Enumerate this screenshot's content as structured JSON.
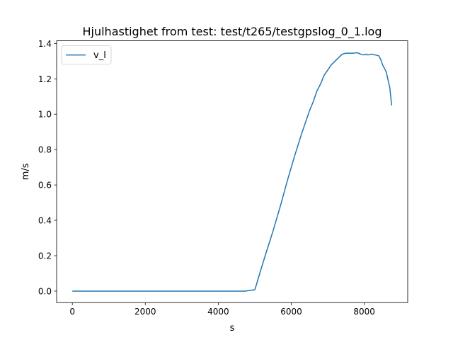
{
  "chart_data": {
    "type": "line",
    "title": "Hjulhastighet from test: test/t265/testgpslog_0_1.log",
    "xlabel": "s",
    "ylabel": "m/s",
    "xlim": [
      -430,
      9190
    ],
    "ylim": [
      -0.065,
      1.415
    ],
    "x_ticks": [
      0,
      2000,
      4000,
      6000,
      8000
    ],
    "x_tick_labels": [
      "0",
      "2000",
      "4000",
      "6000",
      "8000"
    ],
    "y_ticks": [
      0.0,
      0.2,
      0.4,
      0.6,
      0.8,
      1.0,
      1.2,
      1.4
    ],
    "y_tick_labels": [
      "0.0",
      "0.2",
      "0.4",
      "0.6",
      "0.8",
      "1.0",
      "1.2",
      "1.4"
    ],
    "grid": false,
    "legend_position": "upper-left",
    "colors": {
      "series": "#1f77b4",
      "axes": "#000000",
      "background": "#ffffff"
    },
    "series": [
      {
        "name": "v_l",
        "color": "#1f77b4",
        "x": [
          0,
          1000,
          2000,
          3000,
          4000,
          4750,
          4800,
          5000,
          5050,
          5150,
          5300,
          5500,
          5700,
          5900,
          6100,
          6300,
          6500,
          6600,
          6700,
          6800,
          6900,
          7000,
          7100,
          7200,
          7300,
          7400,
          7500,
          7600,
          7700,
          7800,
          7900,
          8000,
          8050,
          8100,
          8200,
          8300,
          8400,
          8450,
          8500,
          8600,
          8700,
          8750
        ],
        "y": [
          0.0,
          0.0,
          0.0,
          0.0,
          0.0,
          0.0,
          0.002,
          0.008,
          0.04,
          0.11,
          0.21,
          0.34,
          0.48,
          0.63,
          0.77,
          0.9,
          1.02,
          1.07,
          1.13,
          1.17,
          1.22,
          1.25,
          1.28,
          1.3,
          1.32,
          1.34,
          1.345,
          1.345,
          1.345,
          1.348,
          1.34,
          1.335,
          1.34,
          1.335,
          1.34,
          1.335,
          1.33,
          1.31,
          1.28,
          1.24,
          1.15,
          1.05
        ]
      }
    ]
  }
}
